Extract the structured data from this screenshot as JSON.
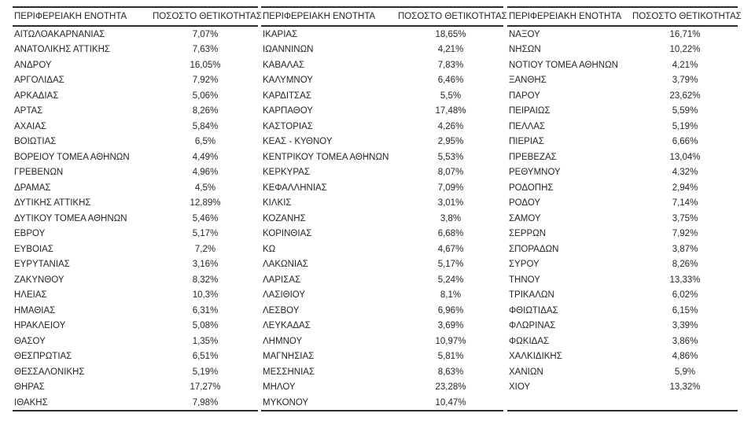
{
  "colors": {
    "text": "#262626",
    "border": "#2b2b2b",
    "background": "#ffffff"
  },
  "headers": {
    "region": "ΠΕΡΙΦΕΡΕΙΑΚΗ ΕΝΟΤΗΤΑ",
    "positivity": "ΠΟΣΟΣΤΟ ΘΕΤΙΚΟΤΗΤΑΣ"
  },
  "chart_data": {
    "type": "table",
    "columns": [
      "ΠΕΡΙΦΕΡΕΙΑΚΗ ΕΝΟΤΗΤΑ",
      "ΠΟΣΟΣΤΟ ΘΕΤΙΚΟΤΗΤΑΣ"
    ],
    "layout": "three side-by-side table groups, each with region name column (left-aligned) and positivity percent column (centered)",
    "groups": [
      {
        "rows": [
          [
            "ΑΙΤΩΛΟΑΚΑΡΝΑΝΙΑΣ",
            "7,07%"
          ],
          [
            "ΑΝΑΤΟΛΙΚΗΣ ΑΤΤΙΚΗΣ",
            "7,63%"
          ],
          [
            "ΑΝΔΡΟΥ",
            "16,05%"
          ],
          [
            "ΑΡΓΟΛΙΔΑΣ",
            "7,92%"
          ],
          [
            "ΑΡΚΑΔΙΑΣ",
            "5,06%"
          ],
          [
            "ΑΡΤΑΣ",
            "8,26%"
          ],
          [
            "ΑΧΑΪΑΣ",
            "5,84%"
          ],
          [
            "ΒΟΙΩΤΙΑΣ",
            "6,5%"
          ],
          [
            "ΒΟΡΕΙΟΥ ΤΟΜΕΑ ΑΘΗΝΩΝ",
            "4,49%"
          ],
          [
            "ΓΡΕΒΕΝΩΝ",
            "4,96%"
          ],
          [
            "ΔΡΑΜΑΣ",
            "4,5%"
          ],
          [
            "ΔΥΤΙΚΗΣ ΑΤΤΙΚΗΣ",
            "12,89%"
          ],
          [
            "ΔΥΤΙΚΟΥ ΤΟΜΕΑ ΑΘΗΝΩΝ",
            "5,46%"
          ],
          [
            "ΕΒΡΟΥ",
            "5,17%"
          ],
          [
            "ΕΥΒΟΙΑΣ",
            "7,2%"
          ],
          [
            "ΕΥΡΥΤΑΝΙΑΣ",
            "3,16%"
          ],
          [
            "ΖΑΚΥΝΘΟΥ",
            "8,32%"
          ],
          [
            "ΗΛΕΙΑΣ",
            "10,3%"
          ],
          [
            "ΗΜΑΘΙΑΣ",
            "6,31%"
          ],
          [
            "ΗΡΑΚΛΕΙΟΥ",
            "5,08%"
          ],
          [
            "ΘΑΣΟΥ",
            "1,35%"
          ],
          [
            "ΘΕΣΠΡΩΤΙΑΣ",
            "6,51%"
          ],
          [
            "ΘΕΣΣΑΛΟΝΙΚΗΣ",
            "5,19%"
          ],
          [
            "ΘΗΡΑΣ",
            "17,27%"
          ],
          [
            "ΙΘΑΚΗΣ",
            "7,98%"
          ]
        ]
      },
      {
        "rows": [
          [
            "ΙΚΑΡΙΑΣ",
            "18,65%"
          ],
          [
            "ΙΩΑΝΝΙΝΩΝ",
            "4,21%"
          ],
          [
            "ΚΑΒΑΛΑΣ",
            "7,83%"
          ],
          [
            "ΚΑΛΥΜΝΟΥ",
            "6,46%"
          ],
          [
            "ΚΑΡΔΙΤΣΑΣ",
            "5,5%"
          ],
          [
            "ΚΑΡΠΑΘΟΥ",
            "17,48%"
          ],
          [
            "ΚΑΣΤΟΡΙΑΣ",
            "4,26%"
          ],
          [
            "ΚΕΑΣ - ΚΥΘΝΟΥ",
            "2,95%"
          ],
          [
            "ΚΕΝΤΡΙΚΟΥ ΤΟΜΕΑ ΑΘΗΝΩΝ",
            "5,53%"
          ],
          [
            "ΚΕΡΚΥΡΑΣ",
            "8,07%"
          ],
          [
            "ΚΕΦΑΛΛΗΝΙΑΣ",
            "7,09%"
          ],
          [
            "ΚΙΛΚΙΣ",
            "3,01%"
          ],
          [
            "ΚΟΖΑΝΗΣ",
            "3,8%"
          ],
          [
            "ΚΟΡΙΝΘΙΑΣ",
            "6,68%"
          ],
          [
            "ΚΩ",
            "4,67%"
          ],
          [
            "ΛΑΚΩΝΙΑΣ",
            "5,17%"
          ],
          [
            "ΛΑΡΙΣΑΣ",
            "5,24%"
          ],
          [
            "ΛΑΣΙΘΙΟΥ",
            "8,1%"
          ],
          [
            "ΛΕΣΒΟΥ",
            "6,96%"
          ],
          [
            "ΛΕΥΚΑΔΑΣ",
            "3,69%"
          ],
          [
            "ΛΗΜΝΟΥ",
            "10,97%"
          ],
          [
            "ΜΑΓΝΗΣΙΑΣ",
            "5,81%"
          ],
          [
            "ΜΕΣΣΗΝΙΑΣ",
            "8,63%"
          ],
          [
            "ΜΗΛΟΥ",
            "23,28%"
          ],
          [
            "ΜΥΚΟΝΟΥ",
            "10,47%"
          ]
        ]
      },
      {
        "rows": [
          [
            "ΝΑΞΟΥ",
            "16,71%"
          ],
          [
            "ΝΗΣΩΝ",
            "10,22%"
          ],
          [
            "ΝΟΤΙΟΥ ΤΟΜΕΑ ΑΘΗΝΩΝ",
            "4,21%"
          ],
          [
            "ΞΑΝΘΗΣ",
            "3,79%"
          ],
          [
            "ΠΑΡΟΥ",
            "23,62%"
          ],
          [
            "ΠΕΙΡΑΙΩΣ",
            "5,59%"
          ],
          [
            "ΠΕΛΛΑΣ",
            "5,19%"
          ],
          [
            "ΠΙΕΡΙΑΣ",
            "6,66%"
          ],
          [
            "ΠΡΕΒΕΖΑΣ",
            "13,04%"
          ],
          [
            "ΡΕΘΥΜΝΟΥ",
            "4,32%"
          ],
          [
            "ΡΟΔΟΠΗΣ",
            "2,94%"
          ],
          [
            "ΡΟΔΟΥ",
            "7,14%"
          ],
          [
            "ΣΑΜΟΥ",
            "3,75%"
          ],
          [
            "ΣΕΡΡΩΝ",
            "7,92%"
          ],
          [
            "ΣΠΟΡΑΔΩΝ",
            "3,87%"
          ],
          [
            "ΣΥΡΟΥ",
            "8,26%"
          ],
          [
            "ΤΗΝΟΥ",
            "13,33%"
          ],
          [
            "ΤΡΙΚΑΛΩΝ",
            "6,02%"
          ],
          [
            "ΦΘΙΩΤΙΔΑΣ",
            "6,15%"
          ],
          [
            "ΦΛΩΡΙΝΑΣ",
            "3,39%"
          ],
          [
            "ΦΩΚΙΔΑΣ",
            "3,86%"
          ],
          [
            "ΧΑΛΚΙΔΙΚΗΣ",
            "4,86%"
          ],
          [
            "ΧΑΝΙΩΝ",
            "5,9%"
          ],
          [
            "ΧΙΟΥ",
            "13,32%"
          ]
        ]
      }
    ]
  }
}
